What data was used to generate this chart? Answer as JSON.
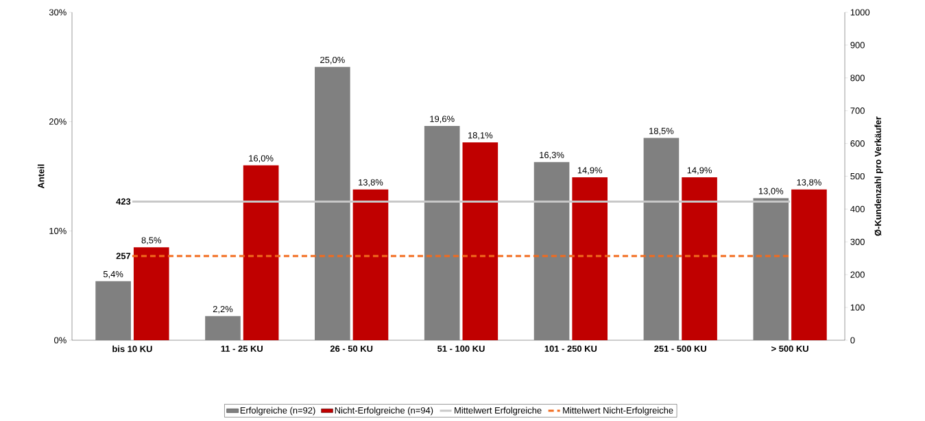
{
  "chart_data": {
    "type": "bar",
    "categories": [
      "bis 10 KU",
      "11 - 25 KU",
      "26 - 50 KU",
      "51 - 100 KU",
      "101 - 250 KU",
      "251 - 500 KU",
      "> 500 KU"
    ],
    "ylabel": "Anteil",
    "y2label": "Ø-Kundenzahl pro Verkäufer",
    "ylim": [
      0,
      30
    ],
    "yticks": [
      {
        "value": 0,
        "label": "0%"
      },
      {
        "value": 10,
        "label": "10%"
      },
      {
        "value": 20,
        "label": "20%"
      },
      {
        "value": 30,
        "label": "30%"
      }
    ],
    "y2lim": [
      0,
      1000
    ],
    "y2ticks": [
      0,
      100,
      200,
      300,
      400,
      500,
      600,
      700,
      800,
      900,
      1000
    ],
    "legend": "bottom",
    "series": [
      {
        "name": "Erfolgreiche (n=92)",
        "color": "#808080",
        "values": [
          5.4,
          2.2,
          25.0,
          19.6,
          16.3,
          18.5,
          13.0
        ],
        "value_labels": [
          "5,4%",
          "2,2%",
          "25,0%",
          "19,6%",
          "16,3%",
          "18,5%",
          "13,0%"
        ]
      },
      {
        "name": "Nicht-Erfolgreiche (n=94)",
        "color": "#c00000",
        "values": [
          8.5,
          16.0,
          13.8,
          18.1,
          14.9,
          14.9,
          13.8
        ],
        "value_labels": [
          "8,5%",
          "16,0%",
          "13,8%",
          "18,1%",
          "14,9%",
          "14,9%",
          "13,8%"
        ]
      },
      {
        "name": "Mittelwert Erfolgreiche",
        "type": "line",
        "axis": "y2",
        "color": "#c8c8c8",
        "line_style": "solid",
        "values": [
          423,
          423,
          423,
          423,
          423,
          423,
          423
        ],
        "value_labels": [
          "423",
          null,
          null,
          null,
          null,
          null,
          null
        ]
      },
      {
        "name": "Mittelwert Nicht-Erfolgreiche",
        "type": "line",
        "axis": "y2",
        "color": "#f26b1d",
        "line_style": "dashed",
        "values": [
          257,
          257,
          257,
          257,
          257,
          257,
          257
        ],
        "value_labels": [
          "257",
          null,
          null,
          null,
          null,
          null,
          null
        ]
      }
    ]
  }
}
